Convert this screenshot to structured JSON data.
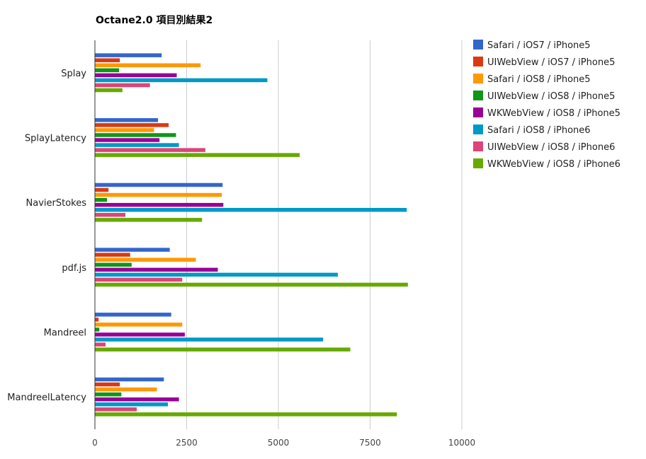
{
  "chart_data": {
    "type": "bar",
    "orientation": "horizontal",
    "title": "Octane2.0 項目別結果2",
    "categories": [
      "Splay",
      "SplayLatency",
      "NavierStokes",
      "pdf.js",
      "Mandreel",
      "MandreelLatency"
    ],
    "xlim": [
      0,
      10000
    ],
    "xticks": [
      0,
      2500,
      5000,
      7500,
      10000
    ],
    "grid": true,
    "legend_position": "right",
    "series": [
      {
        "name": "Safari / iOS7 / iPhone5",
        "color": "#3366cc",
        "values": [
          1820,
          1720,
          3480,
          2040,
          2080,
          1880
        ]
      },
      {
        "name": "UIWebView / iOS7 / iPhone5",
        "color": "#dc3912",
        "values": [
          680,
          2010,
          370,
          960,
          100,
          680
        ]
      },
      {
        "name": "Safari / iOS8 / iPhone5",
        "color": "#ff9900",
        "values": [
          2880,
          1610,
          3460,
          2750,
          2380,
          1690
        ]
      },
      {
        "name": "UIWebView / iOS8 / iPhone5",
        "color": "#109618",
        "values": [
          660,
          2210,
          330,
          1000,
          120,
          720
        ]
      },
      {
        "name": "WKWebView / iOS8 / iPhone5",
        "color": "#990099",
        "values": [
          2230,
          1760,
          3500,
          3350,
          2450,
          2290
        ]
      },
      {
        "name": "Safari / iOS8 / iPhone6",
        "color": "#0099c6",
        "values": [
          4700,
          2290,
          8500,
          6620,
          6220,
          1990
        ]
      },
      {
        "name": "UIWebView / iOS8 / iPhone6",
        "color": "#dd4477",
        "values": [
          1500,
          3010,
          830,
          2380,
          290,
          1140
        ]
      },
      {
        "name": "WKWebView / iOS8 / iPhone6",
        "color": "#66aa00",
        "values": [
          750,
          5580,
          2920,
          8530,
          6960,
          8230
        ]
      }
    ]
  }
}
